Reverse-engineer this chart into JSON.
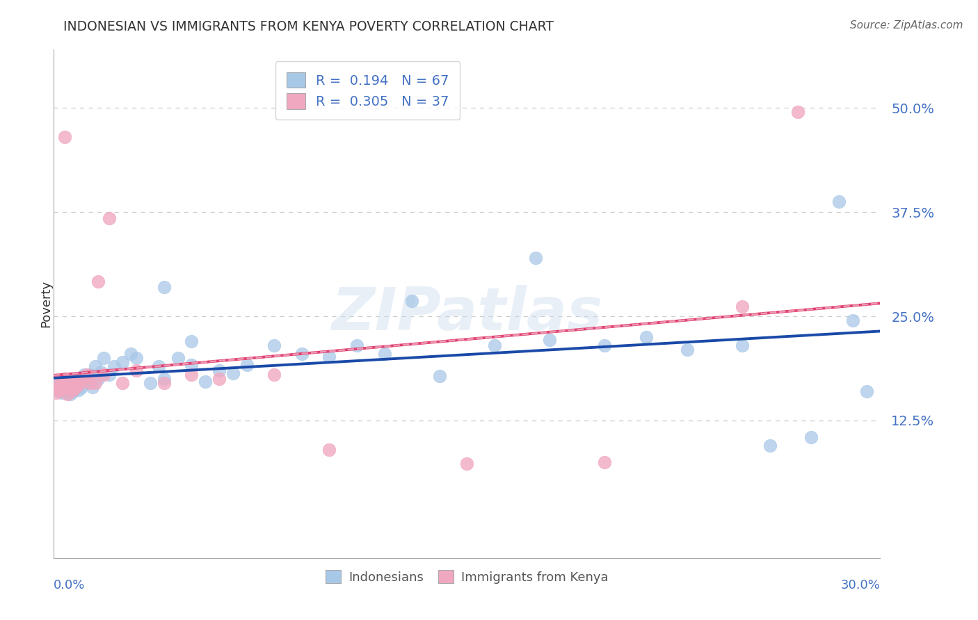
{
  "title": "INDONESIAN VS IMMIGRANTS FROM KENYA POVERTY CORRELATION CHART",
  "source": "Source: ZipAtlas.com",
  "ylabel": "Poverty",
  "xlim": [
    0.0,
    0.3
  ],
  "ylim": [
    -0.04,
    0.57
  ],
  "ytick_values": [
    0.125,
    0.25,
    0.375,
    0.5
  ],
  "ytick_labels": [
    "12.5%",
    "25.0%",
    "37.5%",
    "50.0%"
  ],
  "r_blue": "0.194",
  "n_blue": "67",
  "r_pink": "0.305",
  "n_pink": "37",
  "blue_scatter_color": "#A8C8E8",
  "pink_scatter_color": "#F0A8C0",
  "blue_line_color": "#1A4AA8",
  "pink_line_color": "#E04070",
  "pink_dash_color": "#F0A8C0",
  "label_color": "#4472C4",
  "watermark_text": "ZIPatlas",
  "legend_label_blue": "Indonesians",
  "legend_label_pink": "Immigrants from Kenya",
  "blue_x": [
    0.001,
    0.002,
    0.002,
    0.003,
    0.003,
    0.003,
    0.004,
    0.004,
    0.004,
    0.005,
    0.005,
    0.005,
    0.006,
    0.006,
    0.006,
    0.007,
    0.007,
    0.007,
    0.008,
    0.008,
    0.009,
    0.009,
    0.01,
    0.01,
    0.011,
    0.012,
    0.013,
    0.014,
    0.015,
    0.016,
    0.017,
    0.018,
    0.02,
    0.022,
    0.025,
    0.028,
    0.03,
    0.035,
    0.038,
    0.04,
    0.045,
    0.05,
    0.055,
    0.06,
    0.065,
    0.07,
    0.08,
    0.09,
    0.1,
    0.11,
    0.12,
    0.14,
    0.16,
    0.18,
    0.2,
    0.215,
    0.23,
    0.25,
    0.26,
    0.275,
    0.285,
    0.29,
    0.295,
    0.04,
    0.05,
    0.13,
    0.175
  ],
  "blue_y": [
    0.165,
    0.17,
    0.16,
    0.168,
    0.163,
    0.158,
    0.172,
    0.165,
    0.16,
    0.17,
    0.163,
    0.158,
    0.168,
    0.162,
    0.157,
    0.172,
    0.165,
    0.16,
    0.17,
    0.163,
    0.168,
    0.162,
    0.172,
    0.165,
    0.18,
    0.172,
    0.18,
    0.165,
    0.19,
    0.175,
    0.183,
    0.2,
    0.18,
    0.19,
    0.195,
    0.205,
    0.2,
    0.17,
    0.19,
    0.175,
    0.2,
    0.192,
    0.172,
    0.185,
    0.182,
    0.192,
    0.215,
    0.205,
    0.202,
    0.215,
    0.205,
    0.178,
    0.215,
    0.222,
    0.215,
    0.225,
    0.21,
    0.215,
    0.095,
    0.105,
    0.388,
    0.245,
    0.16,
    0.285,
    0.22,
    0.268,
    0.32
  ],
  "pink_x": [
    0.001,
    0.001,
    0.002,
    0.002,
    0.003,
    0.003,
    0.004,
    0.004,
    0.005,
    0.005,
    0.006,
    0.006,
    0.007,
    0.007,
    0.008,
    0.008,
    0.009,
    0.01,
    0.011,
    0.012,
    0.013,
    0.015,
    0.016,
    0.018,
    0.02,
    0.025,
    0.03,
    0.04,
    0.05,
    0.06,
    0.08,
    0.1,
    0.15,
    0.2,
    0.25,
    0.27,
    0.004
  ],
  "pink_y": [
    0.163,
    0.158,
    0.168,
    0.162,
    0.172,
    0.165,
    0.175,
    0.17,
    0.163,
    0.157,
    0.17,
    0.163,
    0.168,
    0.162,
    0.173,
    0.165,
    0.168,
    0.173,
    0.175,
    0.18,
    0.17,
    0.17,
    0.292,
    0.18,
    0.368,
    0.17,
    0.185,
    0.17,
    0.18,
    0.175,
    0.18,
    0.09,
    0.073,
    0.075,
    0.262,
    0.495,
    0.465
  ]
}
